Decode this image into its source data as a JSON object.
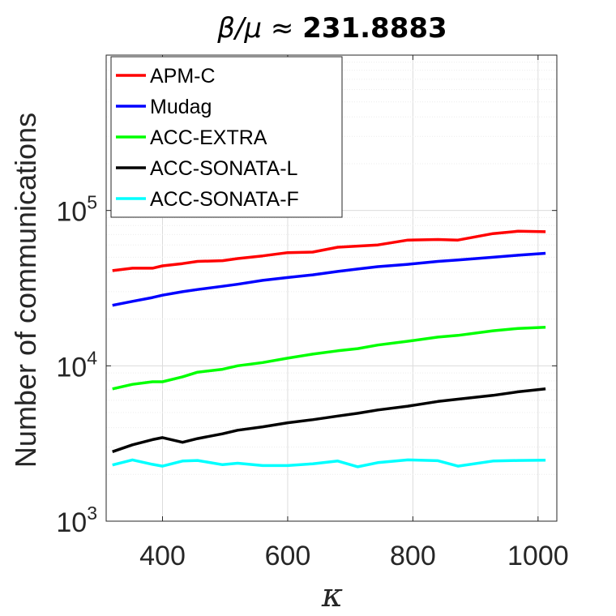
{
  "chart_data": {
    "type": "line",
    "title_math": "β/μ ≈ ",
    "title_value": "231.8883",
    "xlabel": "κ",
    "ylabel": "Number of communications",
    "y_scale": "log",
    "xlim": [
      310,
      1030
    ],
    "ylim": [
      1000,
      1000000
    ],
    "x_ticks": [
      400,
      600,
      800,
      1000
    ],
    "x_tick_labels": [
      "400",
      "600",
      "800",
      "1000"
    ],
    "y_ticks": [
      1000,
      10000,
      100000
    ],
    "y_tick_labels": [
      {
        "base": "10",
        "exp": "3"
      },
      {
        "base": "10",
        "exp": "4"
      },
      {
        "base": "10",
        "exp": "5"
      }
    ],
    "grid": true,
    "legend_position": "top-left",
    "x": [
      320,
      352,
      384,
      400,
      432,
      456,
      496,
      520,
      560,
      600,
      640,
      680,
      712,
      744,
      792,
      840,
      872,
      928,
      968,
      1012
    ],
    "series": [
      {
        "name": "APM-C",
        "color": "#ff0000",
        "values": [
          41000,
          42500,
          42500,
          44000,
          45500,
          47000,
          47500,
          49000,
          51000,
          53500,
          54000,
          58000,
          59000,
          60000,
          64500,
          65000,
          64500,
          71000,
          73500,
          73000
        ]
      },
      {
        "name": "Mudag",
        "color": "#0000ff",
        "values": [
          24500,
          26000,
          27500,
          28500,
          30000,
          31000,
          32500,
          33500,
          35500,
          37000,
          38500,
          40500,
          42000,
          43500,
          45000,
          47000,
          48000,
          50000,
          51500,
          53000
        ]
      },
      {
        "name": "ACC-EXTRA",
        "color": "#00ff00",
        "values": [
          7100,
          7600,
          7900,
          7900,
          8500,
          9100,
          9500,
          10000,
          10500,
          11200,
          11900,
          12500,
          12900,
          13600,
          14400,
          15300,
          15700,
          16800,
          17400,
          17700
        ]
      },
      {
        "name": "ACC-SONATA-L",
        "color": "#000000",
        "values": [
          2800,
          3100,
          3350,
          3450,
          3220,
          3400,
          3650,
          3850,
          4050,
          4300,
          4500,
          4750,
          4950,
          5200,
          5500,
          5900,
          6100,
          6450,
          6800,
          7100
        ]
      },
      {
        "name": "ACC-SONATA-F",
        "color": "#00ffff",
        "values": [
          2300,
          2480,
          2320,
          2260,
          2440,
          2460,
          2310,
          2360,
          2280,
          2280,
          2340,
          2440,
          2240,
          2380,
          2480,
          2450,
          2260,
          2440,
          2460,
          2470
        ]
      }
    ]
  }
}
